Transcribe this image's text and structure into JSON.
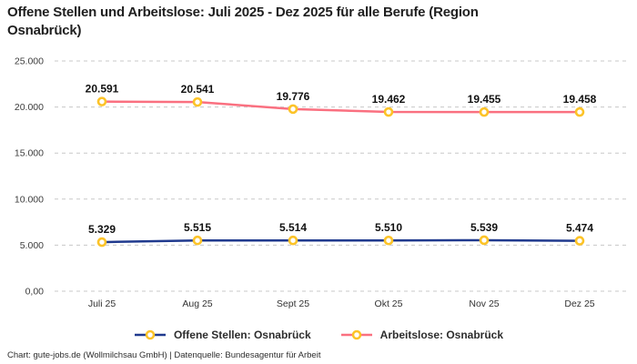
{
  "title": "Offene Stellen und Arbeitslose: Juli 2025 - Dez 2025 für alle Berufe (Region Osnabrück)",
  "footer": "Chart: gute-jobs.de (Wollmilchsau GmbH) | Datenquelle: Bundesagentur für Arbeit",
  "colors": {
    "open_positions_line": "#203a8e",
    "unemployed_line": "#fa7080",
    "marker_ring": "#fcc328",
    "marker_fill": "#ffffff",
    "grid": "#c8c8c8"
  },
  "chart_data": {
    "type": "line",
    "title": "Offene Stellen und Arbeitslose: Juli 2025 - Dez 2025 für alle Berufe (Region Osnabrück)",
    "categories": [
      "Juli 25",
      "Aug 25",
      "Sept 25",
      "Okt 25",
      "Nov 25",
      "Dez 25"
    ],
    "series": [
      {
        "name": "Offene Stellen: Osnabrück",
        "color": "#203a8e",
        "values": [
          5329,
          5515,
          5514,
          5510,
          5539,
          5474
        ],
        "labels": [
          "5.329",
          "5.515",
          "5.514",
          "5.510",
          "5.539",
          "5.474"
        ]
      },
      {
        "name": "Arbeitslose: Osnabrück",
        "color": "#fa7080",
        "values": [
          20591,
          20541,
          19776,
          19462,
          19455,
          19458
        ],
        "labels": [
          "20.591",
          "20.541",
          "19.776",
          "19.462",
          "19.455",
          "19.458"
        ]
      }
    ],
    "y_ticks": [
      {
        "value": 0,
        "label": "0,00"
      },
      {
        "value": 5000,
        "label": "5.000"
      },
      {
        "value": 10000,
        "label": "10.000"
      },
      {
        "value": 15000,
        "label": "15.000"
      },
      {
        "value": 20000,
        "label": "20.000"
      },
      {
        "value": 25000,
        "label": "25.000"
      }
    ],
    "ylim": [
      0,
      25000
    ],
    "xlabel": "",
    "ylabel": "",
    "grid": "horizontal-dashed",
    "legend_position": "bottom-center",
    "marker": "ring",
    "marker_color": "#fcc328"
  }
}
